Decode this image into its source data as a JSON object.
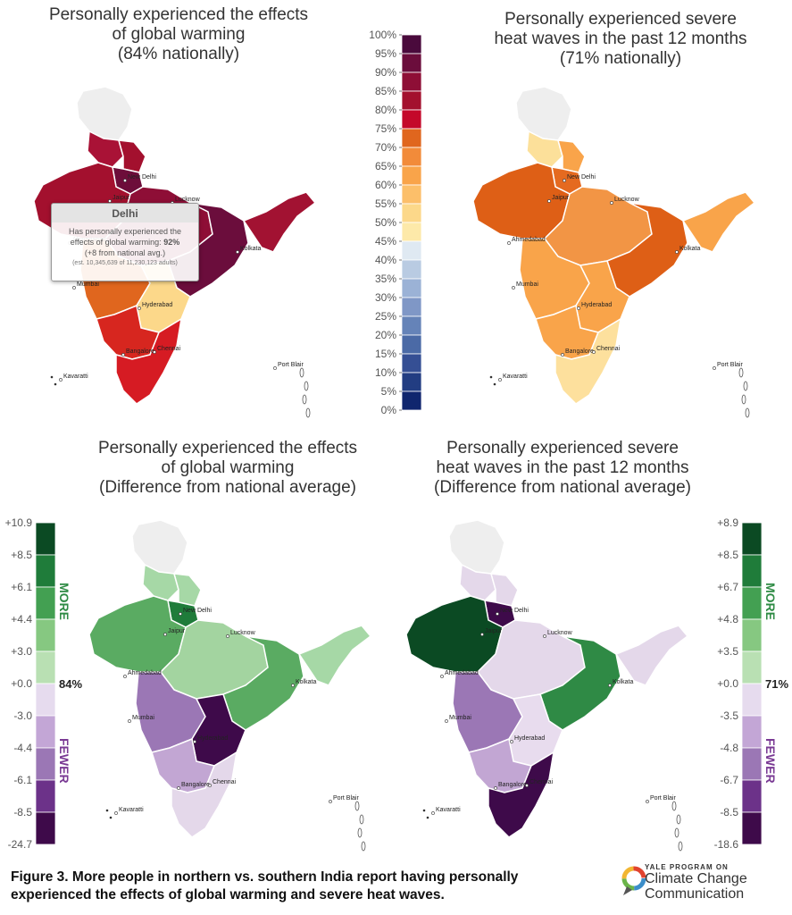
{
  "maps": {
    "top_left": {
      "title_lines": [
        "Personally experienced the effects",
        "of global warming",
        "(84% nationally)"
      ],
      "legend_labels": [],
      "legend_colors": [],
      "tooltip": {
        "title": "Delhi",
        "line1": "Has personally experienced the",
        "line2_prefix": "effects of global warming: ",
        "line2_value": "92%",
        "line3": "(+8 from national avg.)",
        "line4": "(est. 10,345,639 of 11,230,123 adults)"
      },
      "colors": {
        "north": "#a3102e",
        "punjab": "#a91236",
        "delhi_ring": "#6d0d3a",
        "raj": "#a3102e",
        "central": "#8e0e36",
        "east": "#6b0d3c",
        "ne": "#a21232",
        "maha": "#e0661e",
        "telangana": "#fcd88a",
        "karnataka": "#d7261f",
        "south": "#d61b23",
        "jk": "#eeeeee"
      }
    },
    "top_right": {
      "title_lines": [
        "Personally experienced severe",
        "heat waves in the past 12 months",
        "(71% nationally)"
      ],
      "colors": {
        "north": "#f9a44a",
        "punjab": "#fce09a",
        "delhi_ring": "#e56a20",
        "raj": "#de5f16",
        "central": "#f29545",
        "east": "#de5f16",
        "ne": "#f9a44a",
        "maha": "#f9a44a",
        "telangana": "#f9a44a",
        "karnataka": "#f9a44a",
        "south": "#fde09d",
        "jk": "#eeeeee"
      }
    },
    "bottom_left": {
      "title_lines": [
        "Personally experienced the effects",
        "of global warming",
        "(Difference from national average)"
      ],
      "national_label": "84%",
      "legend_labels": [
        "+10.9",
        "+8.5",
        "+6.1",
        "+4.4",
        "+3.0",
        "+0.0",
        "-3.0",
        "-4.4",
        "-6.1",
        "-8.5",
        "-24.7"
      ],
      "more_label": "MORE",
      "fewer_label": "FEWER",
      "colors": {
        "north": "#a6d8a6",
        "punjab": "#a6d8a6",
        "delhi_ring": "#1f7c3a",
        "raj": "#5aab62",
        "central": "#a3d4a0",
        "east": "#5aab62",
        "ne": "#a6d8a6",
        "maha": "#9b77b5",
        "telangana": "#3e0a4a",
        "karnataka": "#c2a6d3",
        "south": "#e4d8ea",
        "jk": "#eeeeee"
      }
    },
    "bottom_right": {
      "title_lines": [
        "Personally experienced severe",
        "heat waves in the past 12 months",
        "(Difference from national average)"
      ],
      "national_label": "71%",
      "legend_labels": [
        "+8.9",
        "+8.5",
        "+6.7",
        "+4.8",
        "+3.5",
        "+0.0",
        "-3.5",
        "-4.8",
        "-6.7",
        "-8.5",
        "-18.6"
      ],
      "more_label": "MORE",
      "fewer_label": "FEWER",
      "colors": {
        "north": "#e4d8ea",
        "punjab": "#e4d8ea",
        "delhi_ring": "#3e0a4a",
        "raj": "#0b4a23",
        "central": "#e4d8ea",
        "east": "#2f8a45",
        "ne": "#e4d8ea",
        "maha": "#9b77b5",
        "telangana": "#e8dcee",
        "karnataka": "#c2a6d3",
        "south": "#3e0a4a",
        "jk": "#eeeeee"
      }
    }
  },
  "percent_scale": {
    "labels": [
      "100%",
      "95%",
      "90%",
      "85%",
      "80%",
      "75%",
      "70%",
      "65%",
      "60%",
      "55%",
      "50%",
      "45%",
      "40%",
      "35%",
      "30%",
      "25%",
      "20%",
      "15%",
      "10%",
      "5%",
      "0%"
    ],
    "colors": [
      "#4a0a3c",
      "#6b0d3c",
      "#8e0e36",
      "#a3102e",
      "#c4082a",
      "#e0661e",
      "#f28b3a",
      "#f9a44a",
      "#fcbf6a",
      "#fcd88a",
      "#fde9a9",
      "#dfe9f2",
      "#b9cbe2",
      "#9bb2d6",
      "#7f97c6",
      "#6583b8",
      "#4b6aa6",
      "#354f94",
      "#223d82",
      "#10266e"
    ]
  },
  "city_labels": [
    "New Delhi",
    "Jaipur",
    "Lucknow",
    "Ahmedabad",
    "Kolkata",
    "Mumbai",
    "Hyderabad",
    "Bangalore",
    "Chennai",
    "Kavaratti",
    "Port Blair"
  ],
  "caption": {
    "line1": "Figure 3. More people in northern vs. southern India report having personally",
    "line2": "experienced the effects of global warming and severe heat waves."
  },
  "logo": {
    "small": "YALE PROGRAM ON",
    "line1": "Climate Change",
    "line2": "Communication"
  }
}
